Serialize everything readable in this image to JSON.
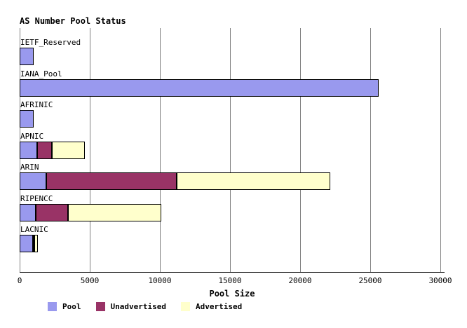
{
  "title": "AS Number Pool Status",
  "chart_data": {
    "type": "bar",
    "orientation": "horizontal",
    "stacked": true,
    "title": "AS Number Pool Status",
    "xlabel": "Pool Size",
    "xlim": [
      0,
      30000
    ],
    "xticks": [
      0,
      5000,
      10000,
      15000,
      20000,
      25000,
      30000
    ],
    "grid": "vertical-only",
    "legend_position": "bottom",
    "categories": [
      "IETF_Reserved",
      "IANA_Pool",
      "AFRINIC",
      "APNIC",
      "ARIN",
      "RIPENCC",
      "LACNIC"
    ],
    "series": [
      {
        "name": "Pool",
        "color": "#9999ee",
        "values": [
          1000,
          25600,
          1000,
          1250,
          1900,
          1150,
          950
        ]
      },
      {
        "name": "Unadvertised",
        "color": "#993366",
        "values": [
          0,
          0,
          0,
          1050,
          9300,
          2300,
          50
        ]
      },
      {
        "name": "Advertised",
        "color": "#ffffcc",
        "values": [
          0,
          0,
          0,
          2350,
          10950,
          6650,
          250
        ]
      }
    ],
    "category_totals": [
      1000,
      25600,
      1000,
      4650,
      22150,
      10100,
      1250
    ]
  },
  "colors": {
    "pool": "#9999ee",
    "unadvertised": "#993366",
    "advertised": "#ffffcc",
    "gridline": "#808080",
    "axis": "#000000",
    "background": "#ffffff"
  }
}
